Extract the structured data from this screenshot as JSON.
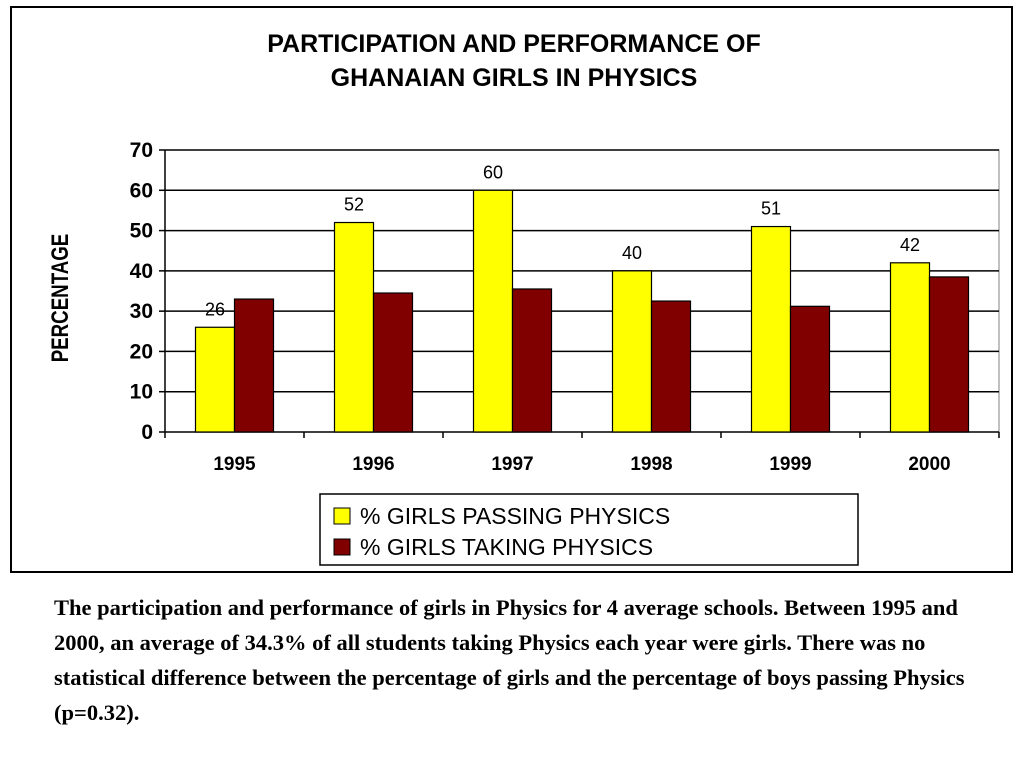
{
  "chart_data": {
    "type": "bar",
    "title_lines": [
      "PARTICIPATION AND PERFORMANCE OF",
      "GHANAIAN GIRLS IN PHYSICS"
    ],
    "ylabel": "PERCENTAGE",
    "xlabel": "",
    "ylim": [
      0,
      70
    ],
    "yticks": [
      0,
      10,
      20,
      30,
      40,
      50,
      60,
      70
    ],
    "categories": [
      "1995",
      "1996",
      "1997",
      "1998",
      "1999",
      "2000"
    ],
    "series": [
      {
        "name": "% GIRLS PASSING PHYSICS",
        "values": [
          26,
          52,
          60,
          40,
          51,
          42
        ],
        "color": "#ffff00",
        "data_labels": [
          "26",
          "52",
          "60",
          "40",
          "51",
          "42"
        ]
      },
      {
        "name": "% GIRLS TAKING PHYSICS",
        "values": [
          33,
          34.5,
          35.5,
          32.5,
          31.2,
          38.5
        ],
        "color": "#800000"
      }
    ],
    "grid": true,
    "legend_position": "bottom"
  },
  "caption": "The participation and performance of girls in Physics for 4 average schools. Between 1995 and 2000, an average of 34.3% of all students taking Physics each year were girls.  There was no statistical difference between the percentage of girls and the percentage of boys passing Physics (p=0.32)."
}
